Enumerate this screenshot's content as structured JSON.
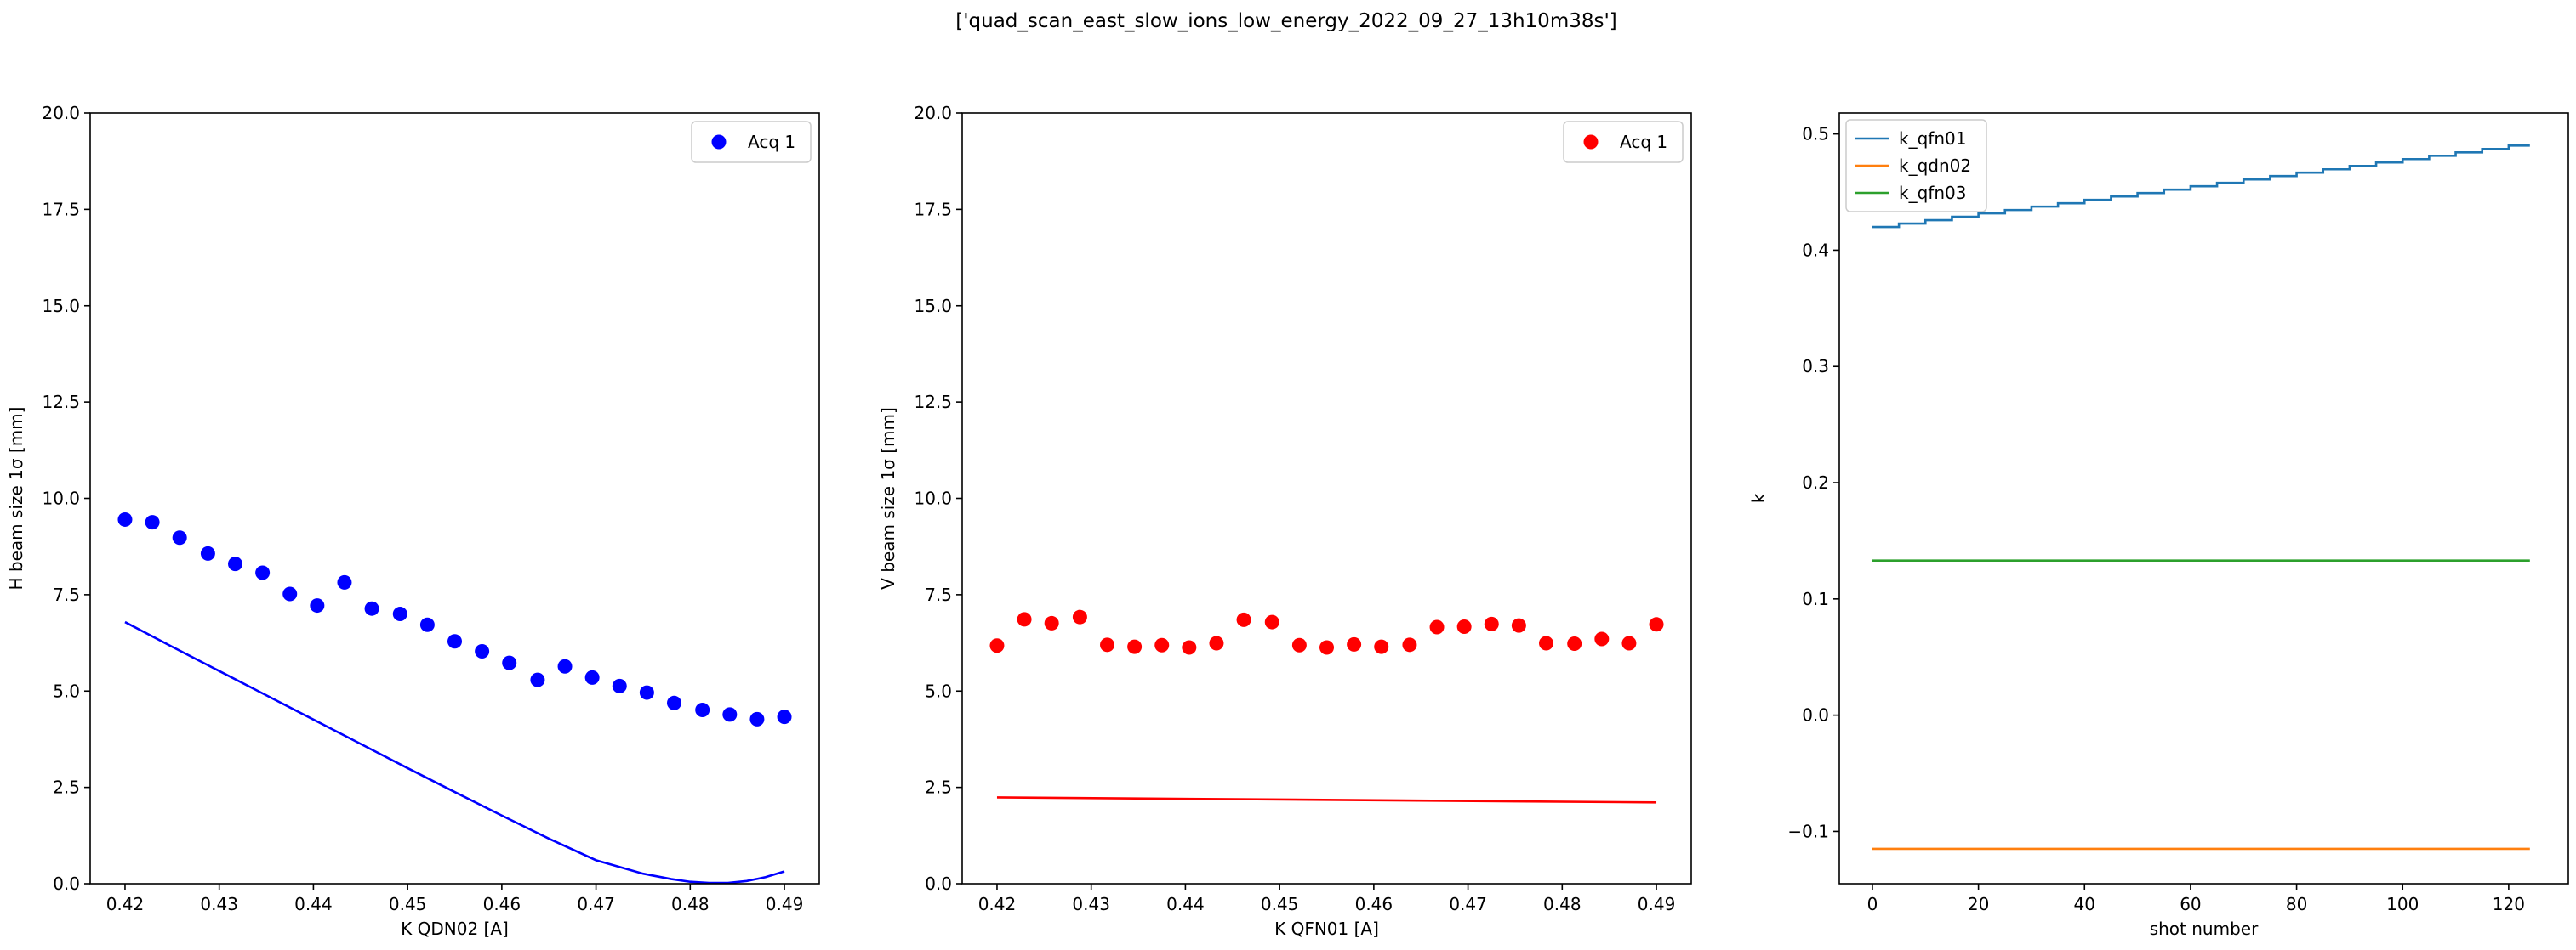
{
  "figure": {
    "suptitle": "['quad_scan_east_slow_ions_low_energy_2022_09_27_13h10m38s']"
  },
  "chart_data": [
    {
      "type": "scatter",
      "xlabel": "K QDN02 [A]",
      "ylabel": "H beam size 1σ [mm]",
      "xlim": [
        0.4163,
        0.4937
      ],
      "ylim": [
        0,
        20
      ],
      "xticks": [
        0.42,
        0.43,
        0.44,
        0.45,
        0.46,
        0.47,
        0.48,
        0.49
      ],
      "xtick_labels": [
        "0.42",
        "0.43",
        "0.44",
        "0.45",
        "0.46",
        "0.47",
        "0.48",
        "0.49"
      ],
      "yticks": [
        0,
        2.5,
        5,
        7.5,
        10,
        12.5,
        15,
        17.5,
        20
      ],
      "ytick_labels": [
        "0.0",
        "2.5",
        "5.0",
        "7.5",
        "10.0",
        "12.5",
        "15.0",
        "17.5",
        "20.0"
      ],
      "legend_position": "upper right",
      "grid": false,
      "series": [
        {
          "name": "Acq 1",
          "kind": "scatter",
          "color": "#0000ff",
          "x": [
            0.42,
            0.4229,
            0.4258,
            0.4288,
            0.4317,
            0.4346,
            0.4375,
            0.4404,
            0.4433,
            0.4462,
            0.4492,
            0.4521,
            0.455,
            0.4579,
            0.4608,
            0.4638,
            0.4667,
            0.4696,
            0.4725,
            0.4754,
            0.4783,
            0.4813,
            0.4842,
            0.4871,
            0.49
          ],
          "y": [
            9.45,
            9.38,
            8.98,
            8.57,
            8.3,
            8.07,
            7.52,
            7.22,
            7.82,
            7.14,
            7.0,
            6.72,
            6.29,
            6.03,
            5.73,
            5.29,
            5.64,
            5.35,
            5.13,
            4.96,
            4.69,
            4.51,
            4.39,
            4.27,
            4.33
          ]
        },
        {
          "kind": "line",
          "color": "#0000ff",
          "x": [
            0.42,
            0.425,
            0.43,
            0.435,
            0.44,
            0.445,
            0.45,
            0.455,
            0.46,
            0.465,
            0.47,
            0.475,
            0.478,
            0.48,
            0.482,
            0.484,
            0.486,
            0.488,
            0.49
          ],
          "y": [
            6.79,
            6.15,
            5.52,
            4.89,
            4.26,
            3.63,
            3.0,
            2.38,
            1.77,
            1.17,
            0.61,
            0.26,
            0.12,
            0.05,
            0.02,
            0.02,
            0.07,
            0.17,
            0.32
          ]
        }
      ]
    },
    {
      "type": "scatter",
      "xlabel": "K QFN01 [A]",
      "ylabel": "V beam size 1σ [mm]",
      "xlim": [
        0.4163,
        0.4937
      ],
      "ylim": [
        0,
        20
      ],
      "xticks": [
        0.42,
        0.43,
        0.44,
        0.45,
        0.46,
        0.47,
        0.48,
        0.49
      ],
      "xtick_labels": [
        "0.42",
        "0.43",
        "0.44",
        "0.45",
        "0.46",
        "0.47",
        "0.48",
        "0.49"
      ],
      "yticks": [
        0,
        2.5,
        5,
        7.5,
        10,
        12.5,
        15,
        17.5,
        20
      ],
      "ytick_labels": [
        "0.0",
        "2.5",
        "5.0",
        "7.5",
        "10.0",
        "12.5",
        "15.0",
        "17.5",
        "20.0"
      ],
      "legend_position": "upper right",
      "grid": false,
      "series": [
        {
          "name": "Acq 1",
          "kind": "scatter",
          "color": "#ff0000",
          "x": [
            0.42,
            0.4229,
            0.4258,
            0.4288,
            0.4317,
            0.4346,
            0.4375,
            0.4404,
            0.4433,
            0.4462,
            0.4492,
            0.4521,
            0.455,
            0.4579,
            0.4608,
            0.4638,
            0.4667,
            0.4696,
            0.4725,
            0.4754,
            0.4783,
            0.4813,
            0.4842,
            0.4871,
            0.49
          ],
          "y": [
            6.18,
            6.86,
            6.76,
            6.92,
            6.2,
            6.15,
            6.19,
            6.13,
            6.24,
            6.85,
            6.79,
            6.19,
            6.13,
            6.21,
            6.15,
            6.2,
            6.66,
            6.67,
            6.74,
            6.7,
            6.24,
            6.23,
            6.35,
            6.24,
            6.73
          ]
        },
        {
          "kind": "line",
          "color": "#ff0000",
          "x": [
            0.42,
            0.49
          ],
          "y": [
            2.24,
            2.11
          ]
        }
      ]
    },
    {
      "type": "line",
      "xlabel": "shot number",
      "ylabel": "k",
      "xlim": [
        -6.25,
        131.25
      ],
      "ylim": [
        -0.145,
        0.518
      ],
      "xticks": [
        0,
        20,
        40,
        60,
        80,
        100,
        120
      ],
      "xtick_labels": [
        "0",
        "20",
        "40",
        "60",
        "80",
        "100",
        "120"
      ],
      "yticks": [
        -0.1,
        0.0,
        0.1,
        0.2,
        0.3,
        0.4,
        0.5
      ],
      "ytick_labels": [
        "−0.1",
        "0.0",
        "0.1",
        "0.2",
        "0.3",
        "0.4",
        "0.5"
      ],
      "legend_position": "upper left",
      "grid": false,
      "series": [
        {
          "name": "k_qfn01",
          "color": "#1f77b4",
          "kind": "staircase",
          "steps": 25,
          "shots_per_step": 5,
          "start": 0.42,
          "end": 0.49
        },
        {
          "name": "k_qdn02",
          "color": "#ff7f0e",
          "kind": "line",
          "x": [
            0,
            124
          ],
          "y": [
            -0.115,
            -0.115
          ]
        },
        {
          "name": "k_qfn03",
          "color": "#2ca02c",
          "kind": "line",
          "x": [
            0,
            124
          ],
          "y": [
            0.133,
            0.133
          ]
        }
      ]
    }
  ]
}
